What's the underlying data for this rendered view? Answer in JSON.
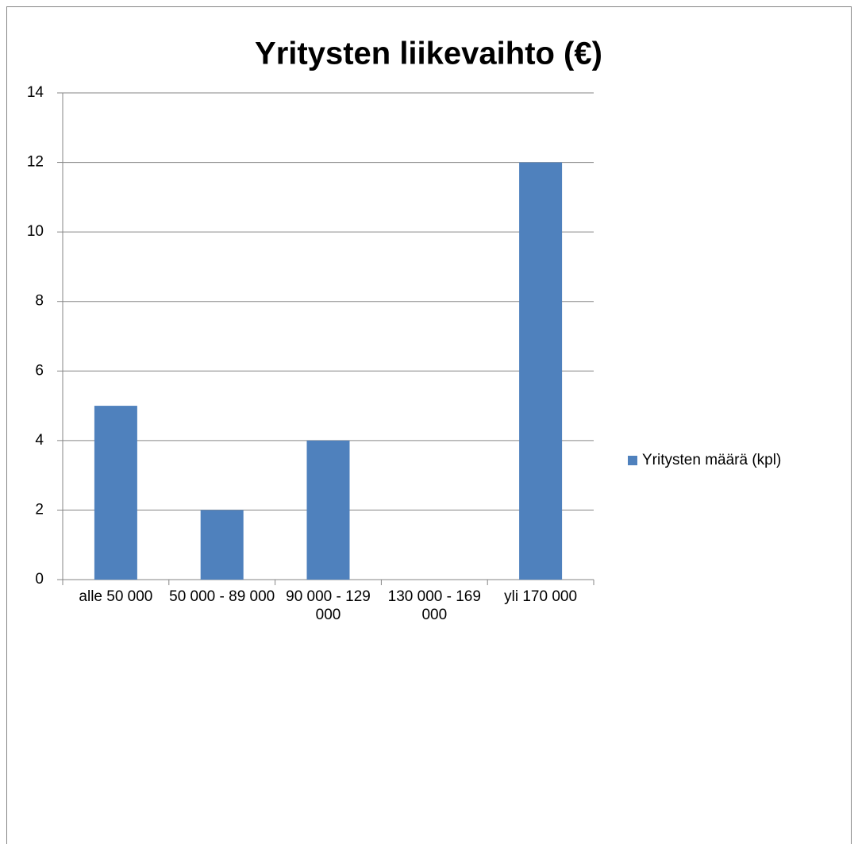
{
  "chart_data": {
    "type": "bar",
    "title": "Yritysten liikevaihto (€)",
    "categories": [
      "alle 50 000",
      "50 000 - 89 000",
      "90 000 - 129 000",
      "130 000 - 169 000",
      "yli 170 000"
    ],
    "series": [
      {
        "name": "Yritysten määrä (kpl)",
        "color": "#4f81bd",
        "values": [
          5,
          2,
          4,
          0,
          12
        ]
      }
    ],
    "ylim": [
      0,
      14
    ],
    "yticks": [
      0,
      2,
      4,
      6,
      8,
      10,
      12,
      14
    ],
    "grid": true,
    "legend": "right"
  }
}
